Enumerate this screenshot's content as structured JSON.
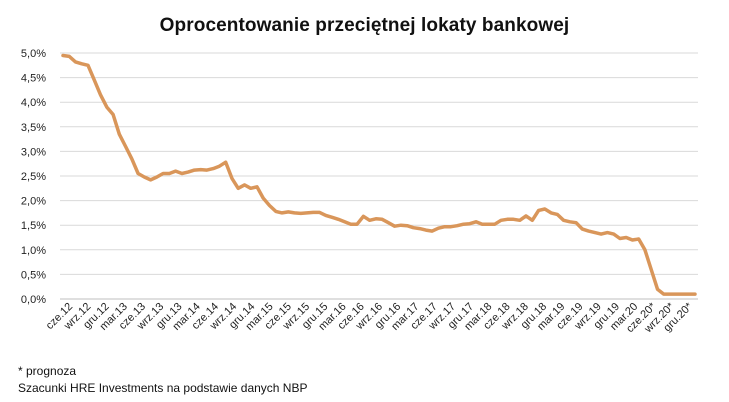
{
  "chart_data": {
    "type": "line",
    "title": "Oprocentowanie przeciętnej lokaty bankowej",
    "xlabel": "",
    "ylabel": "",
    "ylim": [
      0,
      5
    ],
    "yticks": [
      0,
      0.5,
      1,
      1.5,
      2,
      2.5,
      3,
      3.5,
      4,
      4.5,
      5
    ],
    "ytick_labels": [
      "0,0%",
      "0,5%",
      "1,0%",
      "1,5%",
      "2,0%",
      "2,5%",
      "3,0%",
      "3,5%",
      "4,0%",
      "4,5%",
      "5,0%"
    ],
    "grid": true,
    "legend": "none",
    "x_labels": [
      "cze.12",
      "wrz.12",
      "gru.12",
      "mar.13",
      "cze.13",
      "wrz.13",
      "gru.13",
      "mar.14",
      "cze.14",
      "wrz.14",
      "gru.14",
      "mar.15",
      "cze.15",
      "wrz.15",
      "gru.15",
      "mar.16",
      "cze.16",
      "wrz.16",
      "gru.16",
      "mar.17",
      "cze.17",
      "wrz.17",
      "gru.17",
      "mar.18",
      "cze.18",
      "wrz.18",
      "gru.18",
      "mar.19",
      "cze.19",
      "wrz.19",
      "gru.19",
      "mar.20",
      "cze.20*",
      "wrz.20*",
      "gru.20*"
    ],
    "series": [
      {
        "name": "Oprocentowanie przeciętnej lokaty bankowej",
        "color": "#D9965A",
        "values": [
          4.95,
          4.93,
          4.82,
          4.78,
          4.75,
          4.45,
          4.15,
          3.9,
          3.75,
          3.35,
          3.1,
          2.85,
          2.55,
          2.48,
          2.42,
          2.48,
          2.55,
          2.55,
          2.6,
          2.55,
          2.58,
          2.62,
          2.63,
          2.62,
          2.65,
          2.7,
          2.78,
          2.45,
          2.25,
          2.32,
          2.25,
          2.28,
          2.05,
          1.9,
          1.78,
          1.75,
          1.77,
          1.75,
          1.74,
          1.75,
          1.76,
          1.76,
          1.7,
          1.66,
          1.62,
          1.57,
          1.52,
          1.52,
          1.68,
          1.6,
          1.63,
          1.62,
          1.55,
          1.48,
          1.5,
          1.49,
          1.45,
          1.43,
          1.4,
          1.38,
          1.44,
          1.47,
          1.47,
          1.49,
          1.52,
          1.53,
          1.57,
          1.52,
          1.52,
          1.52,
          1.6,
          1.62,
          1.62,
          1.6,
          1.69,
          1.6,
          1.8,
          1.83,
          1.75,
          1.72,
          1.6,
          1.57,
          1.55,
          1.42,
          1.38,
          1.35,
          1.32,
          1.35,
          1.32,
          1.23,
          1.25,
          1.2,
          1.22,
          1.0,
          0.6,
          0.2,
          0.1,
          0.1,
          0.1,
          0.1,
          0.1,
          0.1
        ]
      }
    ]
  },
  "footnotes": {
    "forecast": "* prognoza",
    "source": "Szacunki HRE Investments na podstawie danych NBP"
  }
}
